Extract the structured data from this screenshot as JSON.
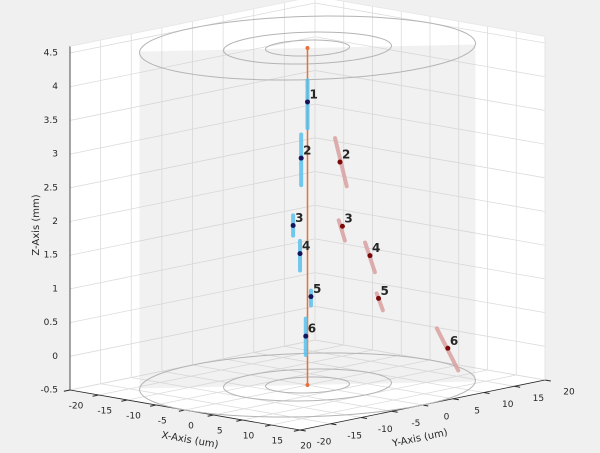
{
  "chart_data": {
    "type": "scatter3d",
    "xlabel": "X-Axis (um)",
    "ylabel": "Y-Axis (um)",
    "zlabel": "Z-Axis (mm)",
    "xlim": [
      -20,
      20
    ],
    "ylim": [
      -20,
      20
    ],
    "zlim": [
      -0.5,
      4.6
    ],
    "xticks": [
      -20,
      -15,
      -10,
      -5,
      0,
      5,
      10,
      15,
      20
    ],
    "yticks": [
      -20,
      -15,
      -10,
      -5,
      0,
      5,
      10,
      15,
      20
    ],
    "zticks": [
      -0.5,
      0,
      0.5,
      1,
      1.5,
      2,
      2.5,
      3,
      3.5,
      4,
      4.5
    ],
    "grid": true,
    "cylinder": {
      "radii": [
        5,
        10,
        20
      ],
      "z": [
        -0.5,
        4.5
      ],
      "color": "#c8c8c8"
    },
    "center_line": {
      "color": "#e8703a",
      "z": [
        -0.5,
        4.5
      ]
    },
    "series": [
      {
        "color": "#5bc0eb",
        "marker_color": "#14145a",
        "labels": [
          "1",
          "2",
          "3",
          "4",
          "5",
          "6"
        ],
        "x": [
          0,
          -1.1,
          -2.5,
          -1.3,
          0.6,
          -0.3
        ],
        "y": [
          0,
          0,
          0,
          0,
          0,
          0
        ],
        "z": [
          3.7,
          2.85,
          1.83,
          1.43,
          0.82,
          0.22
        ],
        "y_start": [
          0,
          0,
          0,
          0,
          0,
          0
        ],
        "y_end": [
          0,
          0,
          0,
          0,
          0,
          0
        ],
        "z_start": [
          4.02,
          3.2,
          1.98,
          1.62,
          0.91,
          0.48
        ],
        "z_end": [
          3.31,
          2.45,
          1.68,
          1.18,
          0.69,
          -0.06
        ]
      },
      {
        "color": "#d9a0a0",
        "marker_color": "#7a0a0a",
        "labels": [
          "2",
          "3",
          "4",
          "5",
          "6"
        ],
        "x": [
          0,
          0,
          0,
          0,
          3.1
        ],
        "y": [
          5.3,
          5.7,
          10.2,
          11.6,
          20
        ],
        "z": [
          2.71,
          1.75,
          1.23,
          0.57,
          -0.28
        ],
        "y_start": [
          4.5,
          5.1,
          9.4,
          11.3,
          18.2
        ],
        "y_end": [
          6.4,
          6.1,
          11,
          12.3,
          21.7
        ],
        "z_start": [
          3.08,
          1.85,
          1.44,
          0.65,
          0.05
        ],
        "z_end": [
          2.33,
          1.53,
          0.97,
          0.38,
          -0.64
        ]
      }
    ]
  }
}
